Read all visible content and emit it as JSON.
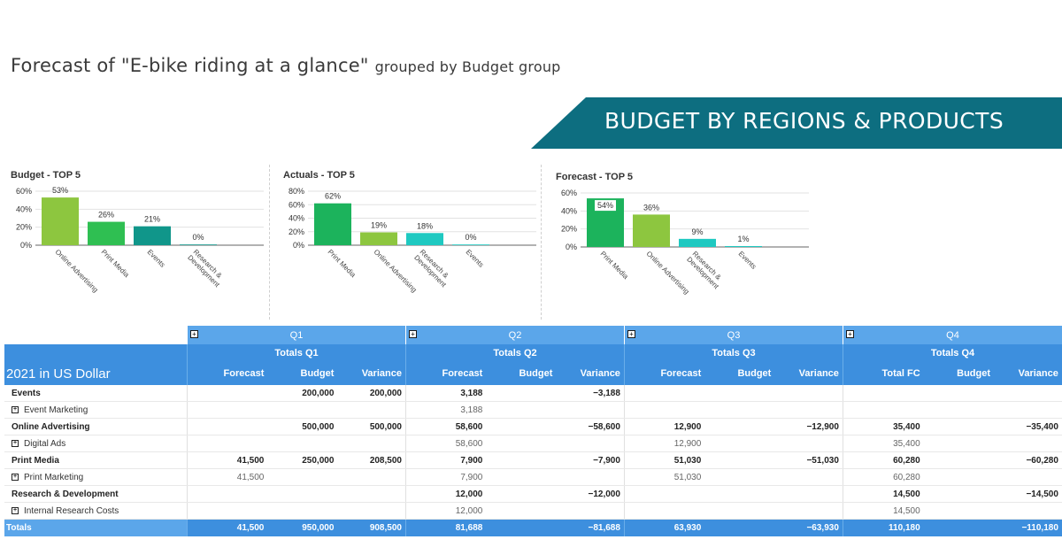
{
  "title": {
    "main": "Forecast of \"E-bike riding at a glance\"",
    "sub": "grouped by Budget group"
  },
  "banner": {
    "text": "BUDGET BY REGIONS & PRODUCTS",
    "color": "#0d6e80"
  },
  "chart_data": [
    {
      "type": "bar",
      "title": "Budget - TOP 5",
      "categories": [
        "Online Advertising",
        "Print Media",
        "Events",
        "Research & Development"
      ],
      "values": [
        53,
        26,
        21,
        0
      ],
      "labels": [
        "53%",
        "26%",
        "21%",
        "0%"
      ],
      "colors": [
        "#8dc63f",
        "#2fbf52",
        "#10968a",
        "#10968a"
      ],
      "yticks": [
        "60%",
        "40%",
        "20%",
        "0%"
      ],
      "ylim": [
        0,
        60
      ]
    },
    {
      "type": "bar",
      "title": "Actuals - TOP 5",
      "categories": [
        "Print Media",
        "Online Advertising",
        "Research & Development",
        "Events"
      ],
      "values": [
        62,
        19,
        18,
        0
      ],
      "labels": [
        "62%",
        "19%",
        "18%",
        "0%"
      ],
      "colors": [
        "#1cb35c",
        "#8dc63f",
        "#1fc9c1",
        "#1fc9c1"
      ],
      "yticks": [
        "80%",
        "60%",
        "40%",
        "20%",
        "0%"
      ],
      "ylim": [
        0,
        80
      ]
    },
    {
      "type": "bar",
      "title": "Forecast - TOP 5",
      "categories": [
        "Print Media",
        "Online Advertising",
        "Research & Development",
        "Events"
      ],
      "values": [
        54,
        36,
        9,
        1
      ],
      "labels": [
        "54%",
        "36%",
        "9%",
        "1%"
      ],
      "colors": [
        "#1cb35c",
        "#8dc63f",
        "#1fc9c1",
        "#1fc9c1"
      ],
      "yticks": [
        "60%",
        "40%",
        "20%",
        "0%"
      ],
      "ylim": [
        0,
        60
      ]
    }
  ],
  "table": {
    "quarters": [
      "Q1",
      "Q2",
      "Q3",
      "Q4"
    ],
    "totals": [
      "Totals Q1",
      "Totals Q2",
      "Totals Q3",
      "Totals Q4"
    ],
    "year_label": "2021 in US Dollar",
    "col_headers": [
      [
        "Forecast",
        "Budget",
        "Variance"
      ],
      [
        "Forecast",
        "Budget",
        "Variance"
      ],
      [
        "Forecast",
        "Budget",
        "Variance"
      ],
      [
        "Total FC",
        "Budget",
        "Variance"
      ]
    ],
    "rows": [
      {
        "label": "Events",
        "level": 0,
        "values": [
          "",
          "200,000",
          "200,000",
          "3,188",
          "",
          "−3,188",
          "",
          "",
          "",
          "",
          "",
          ""
        ]
      },
      {
        "label": "Event Marketing",
        "level": 1,
        "values": [
          "",
          "",
          "",
          "3,188",
          "",
          "",
          "",
          "",
          "",
          "",
          "",
          ""
        ]
      },
      {
        "label": "Online Advertising",
        "level": 0,
        "values": [
          "",
          "500,000",
          "500,000",
          "58,600",
          "",
          "−58,600",
          "12,900",
          "",
          "−12,900",
          "35,400",
          "",
          "−35,400"
        ]
      },
      {
        "label": "Digital Ads",
        "level": 1,
        "values": [
          "",
          "",
          "",
          "58,600",
          "",
          "",
          "12,900",
          "",
          "",
          "35,400",
          "",
          ""
        ]
      },
      {
        "label": "Print Media",
        "level": 0,
        "values": [
          "41,500",
          "250,000",
          "208,500",
          "7,900",
          "",
          "−7,900",
          "51,030",
          "",
          "−51,030",
          "60,280",
          "",
          "−60,280"
        ]
      },
      {
        "label": "Print Marketing",
        "level": 1,
        "values": [
          "41,500",
          "",
          "",
          "7,900",
          "",
          "",
          "51,030",
          "",
          "",
          "60,280",
          "",
          ""
        ]
      },
      {
        "label": "Research & Development",
        "level": 0,
        "values": [
          "",
          "",
          "",
          "12,000",
          "",
          "−12,000",
          "",
          "",
          "",
          "14,500",
          "",
          "−14,500"
        ]
      },
      {
        "label": "Internal Research Costs",
        "level": 1,
        "values": [
          "",
          "",
          "",
          "12,000",
          "",
          "",
          "",
          "",
          "",
          "14,500",
          "",
          ""
        ]
      }
    ],
    "totals_row": {
      "label": "Totals",
      "values": [
        "41,500",
        "950,000",
        "908,500",
        "81,688",
        "",
        "−81,688",
        "63,930",
        "",
        "−63,930",
        "110,180",
        "",
        "−110,180"
      ]
    }
  }
}
